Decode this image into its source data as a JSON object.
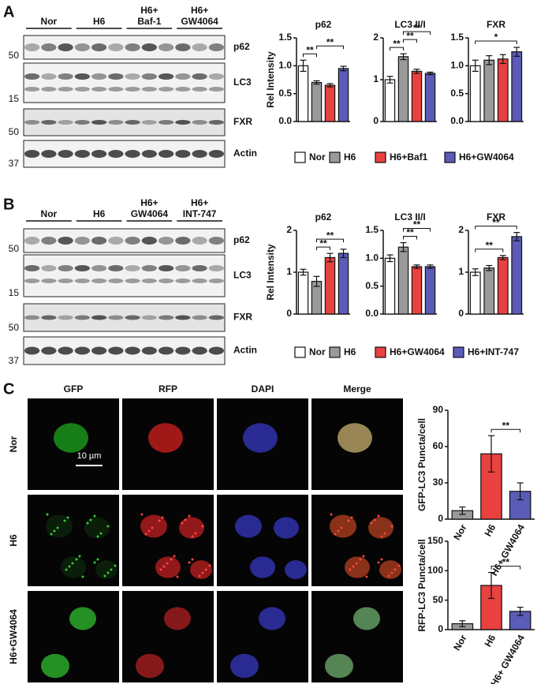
{
  "panels": [
    {
      "label": "A",
      "blot": {
        "groups": [
          [
            "Nor"
          ],
          [
            "H6"
          ],
          [
            "H6+",
            "Baf-1"
          ],
          [
            "H6+",
            "GW4064"
          ]
        ],
        "bands": [
          "p62",
          "LC3",
          "FXR",
          "Actin"
        ],
        "markers": [
          50,
          15,
          50,
          37
        ]
      }
    },
    {
      "label": "B",
      "blot": {
        "groups": [
          [
            "Nor"
          ],
          [
            "H6"
          ],
          [
            "H6+",
            "GW4064"
          ],
          [
            "H6+",
            "INT-747"
          ]
        ],
        "bands": [
          "p62",
          "LC3",
          "FXR",
          "Actin"
        ],
        "markers": [
          50,
          15,
          50,
          37
        ]
      }
    },
    {
      "label": "C",
      "columns": [
        "GFP",
        "RFP",
        "DAPI",
        "Merge"
      ],
      "rows": [
        "Nor",
        "H6",
        "H6+GW4064"
      ],
      "scale_bar": "10 µm"
    }
  ],
  "chart_data": [
    {
      "type": "bar",
      "title": "p62",
      "ylabel": "Rel Intensity",
      "categories": [
        "Nor",
        "H6",
        "H6+Baf1",
        "H6+GW4064"
      ],
      "colors": [
        "#ffffff",
        "#9a9a9a",
        "#e8413f",
        "#5b5bb8"
      ],
      "values": [
        1.0,
        0.7,
        0.65,
        0.95
      ],
      "errors": [
        0.1,
        0.03,
        0.03,
        0.04
      ],
      "ylim": [
        0,
        1.5
      ],
      "yticks": [
        {
          "value": 0,
          "label": "0.0"
        },
        0.5,
        {
          "value": 1,
          "label": "1.0"
        },
        1.5
      ],
      "significance": [
        {
          "from": 0,
          "to": 1,
          "label": "**"
        },
        {
          "from": 1,
          "to": 3,
          "label": "**"
        }
      ]
    },
    {
      "type": "bar",
      "title": "LC3 II/I",
      "categories": [
        "Nor",
        "H6",
        "H6+Baf1",
        "H6+GW4064"
      ],
      "colors": [
        "#ffffff",
        "#9a9a9a",
        "#e8413f",
        "#5b5bb8"
      ],
      "values": [
        1.0,
        1.55,
        1.2,
        1.15
      ],
      "errors": [
        0.08,
        0.07,
        0.05,
        0.03
      ],
      "ylim": [
        0,
        2
      ],
      "yticks": [
        0,
        1,
        2
      ],
      "significance": [
        {
          "from": 0,
          "to": 1,
          "label": "**"
        },
        {
          "from": 1,
          "to": 2,
          "label": "**"
        },
        {
          "from": 1,
          "to": 3,
          "label": "**"
        }
      ]
    },
    {
      "type": "bar",
      "title": "FXR",
      "categories": [
        "Nor",
        "H6",
        "H6+Baf1",
        "H6+GW4064"
      ],
      "colors": [
        "#ffffff",
        "#9a9a9a",
        "#e8413f",
        "#5b5bb8"
      ],
      "values": [
        1.0,
        1.1,
        1.12,
        1.25
      ],
      "errors": [
        0.1,
        0.08,
        0.08,
        0.08
      ],
      "ylim": [
        0,
        1.5
      ],
      "yticks": [
        {
          "value": 0,
          "label": "0.0"
        },
        0.5,
        {
          "value": 1,
          "label": "1.0"
        },
        1.5
      ],
      "significance": [
        {
          "from": 0,
          "to": 3,
          "label": "*"
        }
      ]
    },
    {
      "type": "bar",
      "title": "p62",
      "ylabel": "Rel Intensity",
      "categories": [
        "Nor",
        "H6",
        "H6+GW4064",
        "H6+INT-747"
      ],
      "colors": [
        "#ffffff",
        "#9a9a9a",
        "#e8413f",
        "#5b5bb8"
      ],
      "values": [
        1.0,
        0.78,
        1.35,
        1.45
      ],
      "errors": [
        0.07,
        0.12,
        0.1,
        0.1
      ],
      "ylim": [
        0,
        2
      ],
      "yticks": [
        0,
        1,
        2
      ],
      "significance": [
        {
          "from": 1,
          "to": 2,
          "label": "**"
        },
        {
          "from": 1,
          "to": 3,
          "label": "**"
        }
      ]
    },
    {
      "type": "bar",
      "title": "LC3 II/I",
      "categories": [
        "Nor",
        "H6",
        "H6+GW4064",
        "H6+INT-747"
      ],
      "colors": [
        "#ffffff",
        "#9a9a9a",
        "#e8413f",
        "#5b5bb8"
      ],
      "values": [
        1.0,
        1.2,
        0.85,
        0.85
      ],
      "errors": [
        0.06,
        0.08,
        0.03,
        0.03
      ],
      "ylim": [
        0,
        1.5
      ],
      "yticks": [
        {
          "value": 0,
          "label": "0.0"
        },
        0.5,
        {
          "value": 1,
          "label": "1.0"
        },
        1.5
      ],
      "significance": [
        {
          "from": 1,
          "to": 2,
          "label": "**"
        },
        {
          "from": 1,
          "to": 3,
          "label": "**"
        }
      ]
    },
    {
      "type": "bar",
      "title": "FXR",
      "categories": [
        "Nor",
        "H6",
        "H6+GW4064",
        "H6+INT-747"
      ],
      "colors": [
        "#ffffff",
        "#9a9a9a",
        "#e8413f",
        "#5b5bb8"
      ],
      "values": [
        1.0,
        1.1,
        1.35,
        1.85
      ],
      "errors": [
        0.08,
        0.06,
        0.05,
        0.1
      ],
      "ylim": [
        0,
        2
      ],
      "yticks": [
        0,
        1,
        2
      ],
      "significance": [
        {
          "from": 0,
          "to": 2,
          "label": "**"
        },
        {
          "from": 0,
          "to": 3,
          "label": "**"
        }
      ]
    },
    {
      "type": "bar",
      "ylabel": "GFP-LC3 Puncta/cell",
      "categories": [
        "Nor",
        "H6",
        "H6+ GW4064"
      ],
      "colors": [
        "#9a9a9a",
        "#e8413f",
        "#5b5bb8"
      ],
      "values": [
        7,
        54,
        23
      ],
      "errors": [
        3,
        15,
        7
      ],
      "ylim": [
        0,
        90
      ],
      "yticks": [
        0,
        30,
        60,
        90
      ],
      "significance": [
        {
          "from": 1,
          "to": 2,
          "label": "**"
        }
      ]
    },
    {
      "type": "bar",
      "ylabel": "RFP-LC3 Puncta/cell",
      "categories": [
        "Nor",
        "H6",
        "H6+ GW4064"
      ],
      "colors": [
        "#9a9a9a",
        "#e8413f",
        "#5b5bb8"
      ],
      "values": [
        10,
        75,
        31
      ],
      "errors": [
        5,
        22,
        7
      ],
      "ylim": [
        0,
        150
      ],
      "yticks": [
        0,
        50,
        100,
        150
      ],
      "significance": [
        {
          "from": 1,
          "to": 2,
          "label": "**"
        }
      ]
    }
  ]
}
